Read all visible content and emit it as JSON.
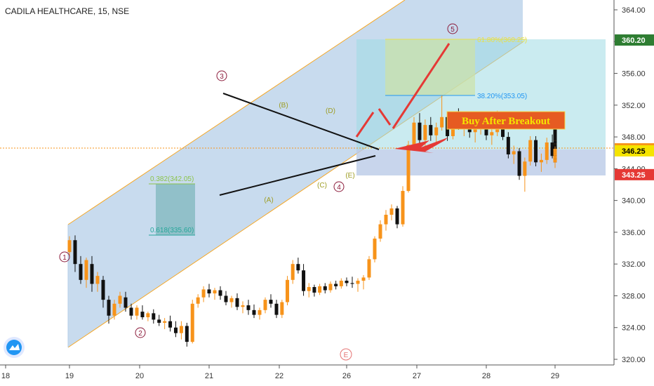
{
  "chart_data": {
    "type": "candlestick",
    "title": "CADILA HEALTHCARE, 15, NSE",
    "x_ticks": [
      "18",
      "19",
      "20",
      "21",
      "22",
      "26",
      "27",
      "28",
      "29"
    ],
    "y_ticks": [
      "320.00",
      "324.00",
      "328.00",
      "332.00",
      "336.00",
      "340.00",
      "344.00",
      "348.00",
      "352.00",
      "356.00",
      "360.00",
      "364.00"
    ],
    "ylim": [
      319.5,
      365.5
    ],
    "price_labels": [
      {
        "value": 360.2,
        "text": "360.20",
        "color": "#2e7d32",
        "text_color": "#ffffff"
      },
      {
        "value": 346.5,
        "text": "346.50",
        "color": "#f7931a",
        "text_color": "#000000"
      },
      {
        "value": 346.25,
        "text": "346.25",
        "color": "#f5e400",
        "text_color": "#000000"
      },
      {
        "value": 343.25,
        "text": "343.25",
        "color": "#e53935",
        "text_color": "#ffffff"
      }
    ],
    "annotations": {
      "callout": "Buy After Breakout",
      "fib_top": "0.382(342.05)",
      "fib_bottom": "0.618(335.60)",
      "target_fib": "38.20%(353.05)",
      "target_top": "61.80%(360.25)",
      "waves_primary": [
        "1",
        "2",
        "3",
        "4",
        "5",
        "E"
      ],
      "waves_minor": [
        "(A)",
        "(B)",
        "(C)",
        "(D)",
        "(E)"
      ]
    },
    "candles": [
      [
        0.0,
        333.5,
        335.5,
        332.8,
        335.0
      ],
      [
        0.08,
        335.0,
        335.6,
        331.0,
        332.0
      ],
      [
        0.16,
        332.0,
        333.0,
        329.5,
        330.0
      ],
      [
        0.24,
        330.0,
        332.8,
        329.0,
        332.5
      ],
      [
        0.32,
        332.0,
        333.0,
        328.5,
        329.5
      ],
      [
        0.4,
        329.5,
        331.0,
        328.5,
        330.5
      ],
      [
        0.48,
        330.0,
        330.5,
        326.5,
        327.5
      ],
      [
        0.56,
        327.5,
        328.0,
        324.5,
        325.5
      ],
      [
        0.64,
        325.5,
        327.5,
        325.0,
        327.0
      ],
      [
        0.72,
        327.0,
        328.5,
        326.5,
        328.0
      ],
      [
        0.8,
        327.8,
        328.5,
        326.0,
        326.5
      ],
      [
        0.88,
        326.5,
        327.0,
        325.0,
        325.5
      ],
      [
        0.96,
        325.5,
        326.8,
        325.0,
        326.5
      ],
      [
        1.04,
        326.0,
        326.8,
        325.0,
        325.3
      ],
      [
        1.12,
        325.3,
        326.0,
        324.8,
        325.8
      ],
      [
        1.2,
        325.8,
        326.3,
        324.5,
        325.0
      ],
      [
        1.28,
        325.0,
        325.6,
        324.2,
        324.6
      ],
      [
        1.36,
        324.6,
        325.2,
        323.8,
        324.8
      ],
      [
        1.44,
        324.8,
        325.5,
        323.5,
        324.0
      ],
      [
        1.52,
        324.0,
        324.8,
        322.8,
        323.3
      ],
      [
        1.6,
        323.3,
        324.8,
        322.5,
        324.2
      ],
      [
        1.68,
        324.2,
        324.6,
        321.6,
        322.2
      ],
      [
        1.76,
        322.2,
        327.5,
        322.0,
        327.0
      ],
      [
        1.84,
        327.0,
        328.2,
        326.5,
        327.8
      ],
      [
        1.92,
        327.8,
        329.2,
        327.2,
        328.8
      ],
      [
        2.0,
        328.8,
        329.5,
        327.8,
        328.3
      ],
      [
        2.08,
        328.3,
        329.0,
        327.5,
        328.7
      ],
      [
        2.16,
        328.7,
        329.2,
        327.5,
        328.0
      ],
      [
        2.24,
        328.0,
        328.6,
        326.8,
        327.2
      ],
      [
        2.32,
        327.2,
        328.0,
        326.5,
        327.7
      ],
      [
        2.4,
        327.7,
        328.3,
        326.2,
        326.6
      ],
      [
        2.48,
        326.6,
        327.3,
        325.8,
        326.8
      ],
      [
        2.56,
        326.8,
        327.5,
        325.6,
        326.2
      ],
      [
        2.64,
        326.2,
        326.9,
        325.2,
        325.6
      ],
      [
        2.72,
        325.6,
        326.5,
        325.0,
        326.2
      ],
      [
        2.8,
        326.2,
        327.8,
        325.8,
        327.5
      ],
      [
        2.88,
        327.5,
        328.2,
        326.5,
        327.0
      ],
      [
        2.96,
        327.0,
        327.5,
        325.2,
        325.6
      ],
      [
        3.04,
        325.6,
        327.5,
        325.2,
        327.2
      ],
      [
        3.12,
        327.2,
        330.5,
        326.8,
        330.0
      ],
      [
        3.2,
        330.0,
        332.5,
        329.5,
        332.0
      ],
      [
        3.28,
        332.0,
        332.8,
        330.8,
        331.2
      ],
      [
        3.36,
        331.2,
        332.0,
        328.0,
        328.6
      ],
      [
        3.44,
        328.6,
        329.6,
        327.8,
        329.1
      ],
      [
        3.52,
        329.1,
        329.4,
        327.9,
        328.4
      ],
      [
        3.6,
        328.4,
        329.5,
        328.1,
        329.2
      ],
      [
        3.68,
        329.2,
        329.6,
        328.3,
        328.7
      ],
      [
        3.76,
        328.7,
        329.8,
        328.4,
        329.5
      ],
      [
        3.84,
        329.5,
        329.9,
        328.8,
        329.2
      ],
      [
        3.92,
        329.2,
        330.2,
        328.9,
        329.9
      ],
      [
        4.0,
        329.9,
        330.3,
        329.2,
        329.6
      ],
      [
        4.08,
        329.6,
        330.4,
        329.0,
        329.5
      ],
      [
        4.16,
        329.5,
        330.2,
        328.5,
        329.9
      ],
      [
        4.24,
        329.9,
        330.6,
        328.8,
        330.3
      ],
      [
        4.32,
        330.3,
        333.0,
        330.0,
        332.6
      ],
      [
        4.4,
        332.6,
        335.5,
        332.2,
        335.2
      ],
      [
        4.48,
        335.2,
        337.5,
        334.8,
        337.0
      ],
      [
        4.56,
        337.0,
        338.8,
        336.2,
        338.2
      ],
      [
        4.64,
        338.2,
        339.5,
        337.5,
        339.0
      ],
      [
        4.72,
        339.0,
        339.3,
        336.5,
        337.0
      ],
      [
        4.8,
        337.0,
        341.8,
        336.7,
        341.2
      ],
      [
        4.88,
        341.2,
        347.5,
        341.0,
        347.0
      ],
      [
        4.96,
        347.0,
        350.5,
        346.5,
        349.8
      ],
      [
        5.04,
        349.8,
        351.0,
        347.0,
        347.6
      ],
      [
        5.12,
        347.6,
        350.2,
        346.8,
        349.5
      ],
      [
        5.2,
        349.5,
        350.5,
        347.5,
        348.2
      ],
      [
        5.28,
        348.2,
        349.8,
        347.0,
        349.2
      ],
      [
        5.36,
        349.2,
        353.2,
        348.8,
        350.5
      ],
      [
        5.44,
        350.5,
        351.2,
        347.5,
        348.1
      ],
      [
        5.52,
        348.1,
        350.6,
        347.7,
        350.1
      ],
      [
        5.6,
        350.1,
        351.6,
        348.9,
        349.4
      ],
      [
        5.68,
        349.4,
        350.9,
        348.1,
        350.3
      ],
      [
        5.76,
        350.3,
        351.1,
        347.9,
        348.6
      ],
      [
        5.84,
        348.6,
        349.9,
        347.3,
        349.1
      ],
      [
        5.92,
        349.1,
        350.7,
        348.3,
        350.4
      ],
      [
        6.0,
        350.4,
        351.0,
        347.6,
        348.2
      ],
      [
        6.08,
        348.2,
        349.5,
        347.0,
        348.6
      ],
      [
        6.16,
        348.6,
        351.3,
        348.1,
        349.9
      ],
      [
        6.24,
        349.9,
        350.5,
        347.6,
        348.0
      ],
      [
        6.32,
        348.0,
        348.6,
        345.3,
        345.8
      ],
      [
        6.4,
        345.8,
        346.9,
        344.6,
        346.2
      ],
      [
        6.48,
        346.2,
        346.6,
        342.6,
        343.1
      ],
      [
        6.56,
        343.1,
        345.4,
        341.1,
        344.9
      ],
      [
        6.64,
        344.9,
        348.1,
        344.4,
        347.6
      ],
      [
        6.72,
        347.6,
        348.1,
        344.3,
        344.8
      ],
      [
        6.8,
        344.8,
        345.9,
        343.6,
        345.1
      ],
      [
        6.88,
        345.1,
        347.9,
        344.6,
        347.3
      ],
      [
        6.96,
        347.3,
        348.3,
        345.3,
        345.6
      ],
      [
        7.04,
        345.6,
        350.3,
        345.1,
        349.6
      ],
      [
        7.12,
        349.6,
        350.6,
        346.6,
        347.2
      ],
      [
        7.2,
        347.2,
        348.4,
        345.3,
        345.8
      ],
      [
        7.28,
        345.8,
        347.6,
        345.1,
        347.1
      ],
      [
        7.36,
        347.1,
        347.4,
        344.3,
        344.8
      ],
      [
        7.44,
        344.8,
        346.6,
        344.1,
        346.0
      ],
      [
        7.52,
        346.0,
        347.3,
        345.2,
        346.9
      ],
      [
        7.6,
        346.9,
        347.3,
        345.6,
        345.9
      ],
      [
        7.68,
        345.9,
        347.6,
        345.4,
        347.1
      ],
      [
        7.76,
        347.1,
        347.6,
        346.1,
        346.6
      ],
      [
        7.84,
        346.6,
        347.9,
        346.2,
        347.5
      ],
      [
        7.92,
        347.5,
        347.9,
        345.4,
        345.8
      ],
      [
        8.0,
        345.8,
        346.6,
        344.4,
        345.2
      ],
      [
        8.08,
        345.2,
        346.1,
        344.1,
        345.7
      ],
      [
        8.16,
        345.7,
        347.6,
        345.3,
        347.2
      ],
      [
        8.24,
        347.2,
        348.3,
        346.3,
        346.6
      ],
      [
        8.32,
        346.6,
        347.6,
        345.8,
        347.1
      ],
      [
        8.4,
        347.1,
        347.6,
        345.9,
        346.2
      ],
      [
        8.48,
        346.2,
        346.8,
        345.9,
        346.5
      ]
    ]
  }
}
